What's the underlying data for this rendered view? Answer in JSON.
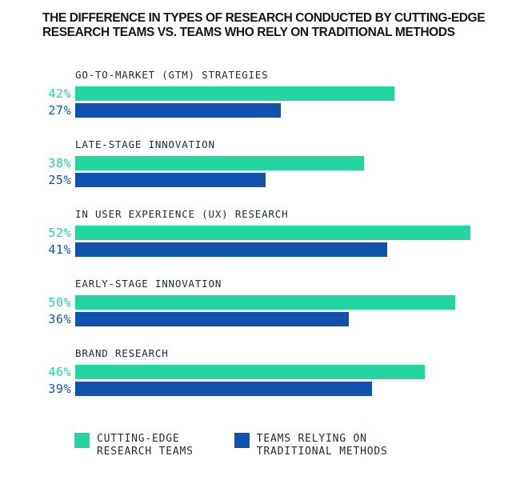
{
  "title": {
    "lines": [
      "THE DIFFERENCE IN TYPES OF RESEARCH CONDUCTED BY CUTTING-EDGE",
      "RESEARCH TEAMS VS. TEAMS WHO RELY ON TRADITIONAL METHODS"
    ]
  },
  "colors": {
    "cutting_edge": "#23D5A1",
    "traditional": "#1152AF",
    "title_text": "#161616",
    "label_text": "#1D2B36"
  },
  "chart_data": {
    "type": "bar",
    "orientation": "horizontal",
    "categories": [
      "GO-TO-MARKET (GTM) STRATEGIES",
      "LATE-STAGE INNOVATION",
      "IN USER EXPERIENCE (UX) RESEARCH",
      "EARLY-STAGE INNOVATION",
      "BRAND RESEARCH"
    ],
    "series": [
      {
        "name": "CUTTING-EDGE RESEARCH TEAMS",
        "color_key": "cutting_edge",
        "values": [
          42,
          38,
          52,
          50,
          46
        ]
      },
      {
        "name": "TEAMS RELYING ON TRADITIONAL METHODS",
        "color_key": "traditional",
        "values": [
          27,
          25,
          41,
          36,
          39
        ]
      }
    ],
    "value_suffix": "%",
    "xlim": [
      0,
      52
    ],
    "grid": false,
    "legend_position": "bottom"
  },
  "legend": {
    "items": [
      {
        "color_key": "cutting_edge",
        "label_lines": [
          "CUTTING-EDGE",
          "RESEARCH TEAMS"
        ]
      },
      {
        "color_key": "traditional",
        "label_lines": [
          "TEAMS RELYING ON",
          "TRADITIONAL METHODS"
        ]
      }
    ]
  }
}
